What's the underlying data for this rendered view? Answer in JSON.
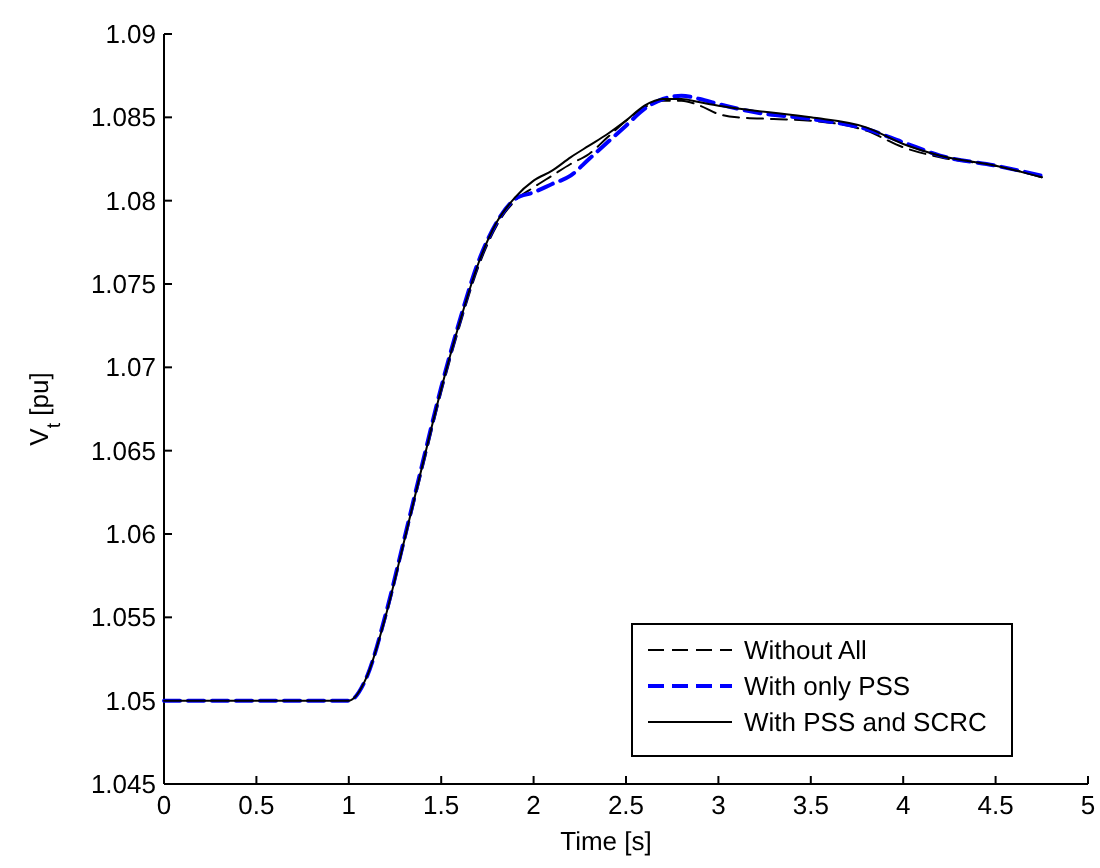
{
  "chart_data": {
    "type": "line",
    "xlabel": "Time [s]",
    "ylabel": "V$_{t}$ [pu]",
    "xlim": [
      0,
      5
    ],
    "ylim": [
      1.045,
      1.09
    ],
    "xticks": [
      0,
      0.5,
      1,
      1.5,
      2,
      2.5,
      3,
      3.5,
      4,
      4.5,
      5
    ],
    "yticks": [
      1.045,
      1.05,
      1.055,
      1.06,
      1.065,
      1.07,
      1.075,
      1.08,
      1.085,
      1.09
    ],
    "grid": false,
    "legend": "bottom right",
    "series": [
      {
        "name": "Without All",
        "color": "#000000",
        "line_style": "dashed",
        "x": [
          0,
          1,
          1.1,
          1.2,
          1.3,
          1.4,
          1.5,
          1.6,
          1.7,
          1.8,
          1.9,
          2,
          2.1,
          2.2,
          2.3,
          2.4,
          2.5,
          2.6,
          2.7,
          2.8,
          2.9,
          3,
          3.1,
          3.3,
          3.5,
          3.8,
          4,
          4.2,
          4.5,
          4.75
        ],
        "values": [
          1.05,
          1.05,
          1.0515,
          1.055,
          1.0595,
          1.064,
          1.0685,
          1.0725,
          1.076,
          1.0785,
          1.08,
          1.0808,
          1.0815,
          1.0822,
          1.0828,
          1.0838,
          1.0848,
          1.0856,
          1.086,
          1.086,
          1.0857,
          1.0852,
          1.085,
          1.0849,
          1.0848,
          1.0842,
          1.0832,
          1.0826,
          1.0821,
          1.0814
        ]
      },
      {
        "name": "With only PSS",
        "color": "#0000ff",
        "line_style": "dashed",
        "x": [
          0,
          1,
          1.1,
          1.2,
          1.3,
          1.4,
          1.5,
          1.6,
          1.7,
          1.8,
          1.9,
          2,
          2.1,
          2.2,
          2.3,
          2.4,
          2.5,
          2.6,
          2.7,
          2.8,
          2.9,
          3,
          3.2,
          3.5,
          3.8,
          4,
          4.2,
          4.5,
          4.75
        ],
        "values": [
          1.05,
          1.05,
          1.0515,
          1.0552,
          1.0597,
          1.0643,
          1.0688,
          1.0728,
          1.0763,
          1.0787,
          1.0801,
          1.0805,
          1.081,
          1.0815,
          1.0825,
          1.0835,
          1.0845,
          1.0855,
          1.0861,
          1.0863,
          1.0861,
          1.0858,
          1.0853,
          1.0849,
          1.0843,
          1.0835,
          1.0827,
          1.0821,
          1.0815
        ]
      },
      {
        "name": "With PSS and SCRC",
        "color": "#000000",
        "line_style": "solid",
        "x": [
          0,
          1,
          1.1,
          1.2,
          1.3,
          1.4,
          1.5,
          1.6,
          1.7,
          1.8,
          1.9,
          2,
          2.1,
          2.2,
          2.3,
          2.4,
          2.5,
          2.6,
          2.7,
          2.8,
          2.9,
          3,
          3.2,
          3.5,
          3.8,
          4,
          4.2,
          4.5,
          4.75
        ],
        "values": [
          1.05,
          1.05,
          1.0515,
          1.0551,
          1.0596,
          1.0642,
          1.0687,
          1.0727,
          1.0762,
          1.0787,
          1.0802,
          1.0812,
          1.0818,
          1.0826,
          1.0833,
          1.084,
          1.0848,
          1.0857,
          1.0861,
          1.0861,
          1.0859,
          1.0857,
          1.0854,
          1.085,
          1.0844,
          1.0834,
          1.0827,
          1.0821,
          1.0814
        ]
      }
    ]
  }
}
